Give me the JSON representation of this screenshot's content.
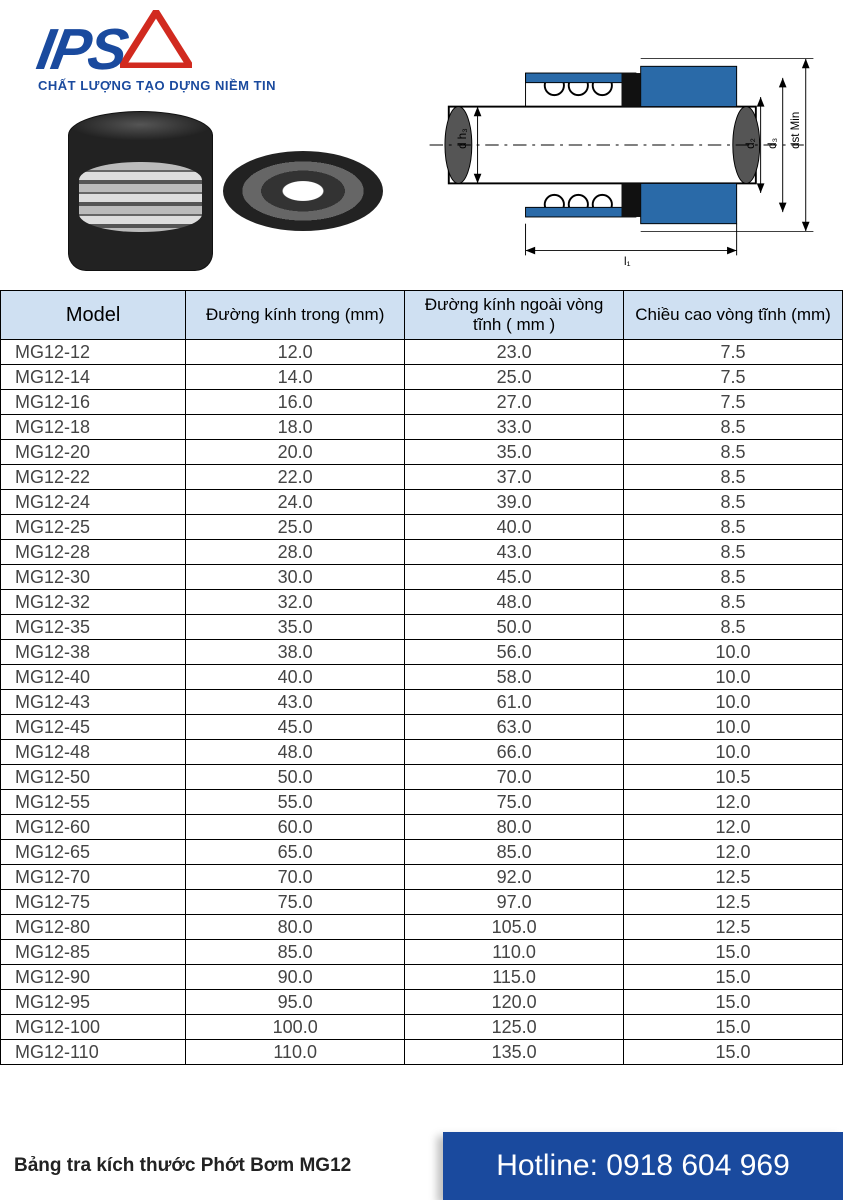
{
  "logo": {
    "text": "IPS",
    "tagline": "CHẤT LƯỢNG TẠO DỰNG NIỀM TIN",
    "brand_color": "#1a4a9e",
    "triangle_color": "#d12a1f"
  },
  "diagram": {
    "labels": {
      "h3": "d h₃",
      "d2": "d₂",
      "d3": "d₃",
      "dst": "dst Min",
      "l1": "l₁"
    },
    "colors": {
      "seal": "#2a6aa8",
      "line": "#000000",
      "shaft": "#4a4a4a"
    }
  },
  "table": {
    "columns": [
      "Model",
      "Đường kính trong (mm)",
      "Đường kính ngoài vòng tĩnh ( mm )",
      "Chiều cao vòng tĩnh (mm)"
    ],
    "header_bg": "#cfe0f2",
    "rows": [
      [
        "MG12-12",
        "12.0",
        "23.0",
        "7.5"
      ],
      [
        "MG12-14",
        "14.0",
        "25.0",
        "7.5"
      ],
      [
        "MG12-16",
        "16.0",
        "27.0",
        "7.5"
      ],
      [
        "MG12-18",
        "18.0",
        "33.0",
        "8.5"
      ],
      [
        "MG12-20",
        "20.0",
        "35.0",
        "8.5"
      ],
      [
        "MG12-22",
        "22.0",
        "37.0",
        "8.5"
      ],
      [
        "MG12-24",
        "24.0",
        "39.0",
        "8.5"
      ],
      [
        "MG12-25",
        "25.0",
        "40.0",
        "8.5"
      ],
      [
        "MG12-28",
        "28.0",
        "43.0",
        "8.5"
      ],
      [
        "MG12-30",
        "30.0",
        "45.0",
        "8.5"
      ],
      [
        "MG12-32",
        "32.0",
        "48.0",
        "8.5"
      ],
      [
        "MG12-35",
        "35.0",
        "50.0",
        "8.5"
      ],
      [
        "MG12-38",
        "38.0",
        "56.0",
        "10.0"
      ],
      [
        "MG12-40",
        "40.0",
        "58.0",
        "10.0"
      ],
      [
        "MG12-43",
        "43.0",
        "61.0",
        "10.0"
      ],
      [
        "MG12-45",
        "45.0",
        "63.0",
        "10.0"
      ],
      [
        "MG12-48",
        "48.0",
        "66.0",
        "10.0"
      ],
      [
        "MG12-50",
        "50.0",
        "70.0",
        "10.5"
      ],
      [
        "MG12-55",
        "55.0",
        "75.0",
        "12.0"
      ],
      [
        "MG12-60",
        "60.0",
        "80.0",
        "12.0"
      ],
      [
        "MG12-65",
        "65.0",
        "85.0",
        "12.0"
      ],
      [
        "MG12-70",
        "70.0",
        "92.0",
        "12.5"
      ],
      [
        "MG12-75",
        "75.0",
        "97.0",
        "12.5"
      ],
      [
        "MG12-80",
        "80.0",
        "105.0",
        "12.5"
      ],
      [
        "MG12-85",
        "85.0",
        "110.0",
        "15.0"
      ],
      [
        "MG12-90",
        "90.0",
        "115.0",
        "15.0"
      ],
      [
        "MG12-95",
        "95.0",
        "120.0",
        "15.0"
      ],
      [
        "MG12-100",
        "100.0",
        "125.0",
        "15.0"
      ],
      [
        "MG12-110",
        "110.0",
        "135.0",
        "15.0"
      ]
    ]
  },
  "footer": {
    "title": "Bảng tra kích thước Phớt Bơm MG12",
    "hotline_label": "Hotline:",
    "hotline_number": "0918 604 969",
    "hotline_bg": "#1a4a9e"
  }
}
